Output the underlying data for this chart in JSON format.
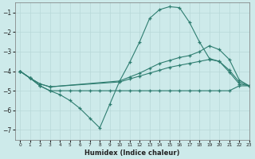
{
  "bg_color": "#cdeaea",
  "grid_color": "#b8d8d8",
  "line_color": "#2e7d70",
  "xlabel": "Humidex (Indice chaleur)",
  "ylim": [
    -7.5,
    -0.5
  ],
  "xlim": [
    -0.5,
    23
  ],
  "yticks": [
    -7,
    -6,
    -5,
    -4,
    -3,
    -2,
    -1
  ],
  "xticks": [
    0,
    1,
    2,
    3,
    4,
    5,
    6,
    7,
    8,
    9,
    10,
    11,
    12,
    13,
    14,
    15,
    16,
    17,
    18,
    19,
    20,
    21,
    22,
    23
  ],
  "line1_x": [
    0,
    1,
    2,
    3,
    4,
    5,
    6,
    7,
    8,
    9,
    10,
    11,
    12,
    13,
    14,
    15,
    16,
    17,
    18,
    19,
    20,
    21,
    22,
    23
  ],
  "line1_y": [
    -4.0,
    -4.35,
    -4.75,
    -5.0,
    -5.2,
    -5.5,
    -5.9,
    -6.4,
    -6.9,
    -5.7,
    -4.5,
    -3.55,
    -2.5,
    -1.3,
    -0.85,
    -0.7,
    -0.75,
    -1.5,
    -2.5,
    -3.35,
    -3.5,
    -4.05,
    -4.65,
    -4.75
  ],
  "line2_x": [
    0,
    1,
    2,
    3,
    4,
    5,
    6,
    7,
    8,
    9,
    10,
    11,
    12,
    13,
    14,
    15,
    16,
    17,
    18,
    19,
    20,
    21,
    22,
    23
  ],
  "line2_y": [
    -4.0,
    -4.35,
    -4.75,
    -5.0,
    -5.0,
    -5.0,
    -5.0,
    -5.0,
    -5.0,
    -5.0,
    -5.0,
    -5.0,
    -5.0,
    -5.0,
    -5.0,
    -5.0,
    -5.0,
    -5.0,
    -5.0,
    -5.0,
    -5.0,
    -5.0,
    -4.75,
    -4.75
  ],
  "line3_x": [
    0,
    1,
    2,
    3,
    10,
    11,
    12,
    13,
    14,
    15,
    16,
    17,
    18,
    19,
    20,
    21,
    22,
    23
  ],
  "line3_y": [
    -4.0,
    -4.35,
    -4.65,
    -4.8,
    -4.5,
    -4.3,
    -4.1,
    -3.85,
    -3.6,
    -3.45,
    -3.3,
    -3.2,
    -3.0,
    -2.7,
    -2.9,
    -3.4,
    -4.45,
    -4.75
  ],
  "line4_x": [
    0,
    1,
    2,
    3,
    10,
    11,
    12,
    13,
    14,
    15,
    16,
    17,
    18,
    19,
    20,
    21,
    22,
    23
  ],
  "line4_y": [
    -4.0,
    -4.35,
    -4.65,
    -4.8,
    -4.55,
    -4.4,
    -4.25,
    -4.1,
    -3.95,
    -3.8,
    -3.7,
    -3.6,
    -3.5,
    -3.4,
    -3.5,
    -3.95,
    -4.55,
    -4.75
  ]
}
